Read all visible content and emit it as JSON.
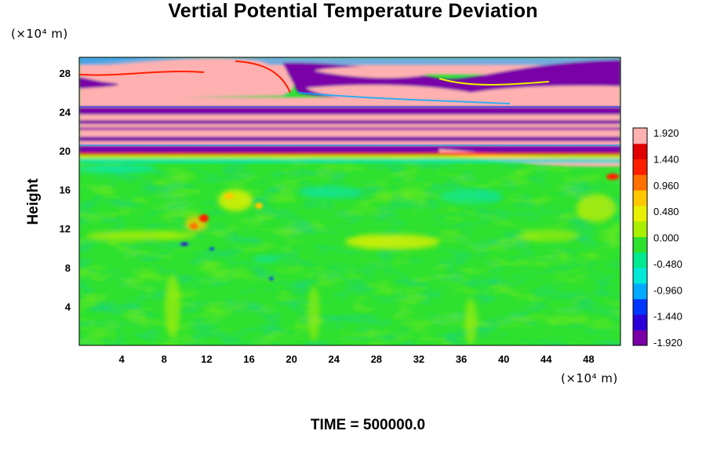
{
  "chart_data": {
    "type": "heatmap",
    "title": "Vertial Potential Temperature Deviation",
    "ylabel": "Height",
    "y_unit": "(×10⁴ m)",
    "x_unit": "(×10⁴ m)",
    "footer": "TIME = 500000.0",
    "x_ticks": [
      "4",
      "8",
      "12",
      "16",
      "20",
      "24",
      "28",
      "32",
      "36",
      "40",
      "44",
      "48"
    ],
    "y_ticks": [
      "4",
      "8",
      "12",
      "16",
      "20",
      "24",
      "28"
    ],
    "xlim": [
      0,
      51
    ],
    "ylim": [
      0,
      29.6
    ],
    "colorbar": {
      "range": [
        -1.92,
        1.92
      ],
      "labels": [
        "1.920",
        "1.440",
        "0.960",
        "0.480",
        "0.000",
        "-0.480",
        "-0.960",
        "-1.440",
        "-1.920"
      ],
      "colors": [
        "#7a00a8",
        "#2a00d8",
        "#0036ff",
        "#00aaff",
        "#00e8d8",
        "#00e890",
        "#2ee12e",
        "#a8f000",
        "#e8f000",
        "#ffc800",
        "#ff7000",
        "#ff2000",
        "#e00000",
        "#ffb0b0"
      ]
    },
    "field": {
      "description_bands": [
        {
          "y": [
            26.0,
            29.6
          ],
          "level": "high",
          "note": "pink maxima with purple minima"
        },
        {
          "y": [
            20.0,
            26.0
          ],
          "level": "banded",
          "note": "alternating pink and purple layers"
        },
        {
          "y": [
            0,
            20.0
          ],
          "level": "near-zero",
          "note": "green with small yellow/cyan anomalies"
        }
      ]
    }
  }
}
